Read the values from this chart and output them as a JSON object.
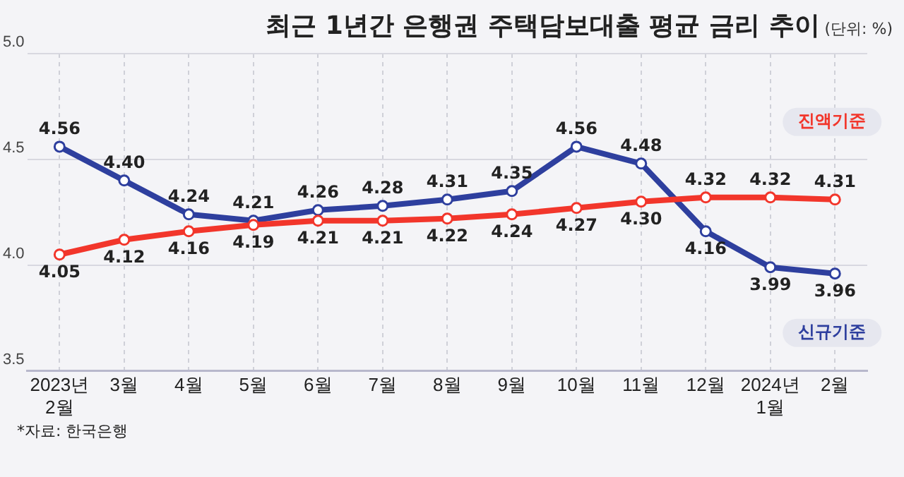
{
  "chart_data": {
    "type": "line",
    "title": "최근 1년간 은행권 주택담보대출 평균 금리 추이",
    "subtitle": "(단위: %)",
    "categories": [
      "2023년\n2월",
      "3월",
      "4월",
      "5월",
      "6월",
      "7월",
      "8월",
      "9월",
      "10월",
      "11월",
      "12월",
      "2024년\n1월",
      "2월"
    ],
    "series": [
      {
        "name": "진액기준",
        "color": "#f2362b",
        "values": [
          4.05,
          4.12,
          4.16,
          4.19,
          4.21,
          4.21,
          4.22,
          4.24,
          4.27,
          4.3,
          4.32,
          4.32,
          4.31
        ],
        "value_labels": [
          "4.05",
          "4.12",
          "4.16",
          "4.19",
          "4.21",
          "4.21",
          "4.22",
          "4.24",
          "4.27",
          "4.30",
          "4.32",
          "4.32",
          "4.31"
        ]
      },
      {
        "name": "신규기준",
        "color": "#2e3f9e",
        "values": [
          4.56,
          4.4,
          4.24,
          4.21,
          4.26,
          4.28,
          4.31,
          4.35,
          4.56,
          4.48,
          4.16,
          3.99,
          3.96
        ],
        "value_labels": [
          "4.56",
          "4.40",
          "4.24",
          "4.21",
          "4.26",
          "4.28",
          "4.31",
          "4.35",
          "4.56",
          "4.48",
          "4.16",
          "3.99",
          "3.96"
        ]
      }
    ],
    "ylim": [
      3.5,
      5.0
    ],
    "yticks": [
      {
        "value": 3.5,
        "label": "3.5"
      },
      {
        "value": 4.0,
        "label": "4.0"
      },
      {
        "value": 4.5,
        "label": "4.5"
      },
      {
        "value": 5.0,
        "label": "5.0"
      }
    ],
    "grid": true,
    "legend": false,
    "marker": "circle",
    "line_style": "solid",
    "annotations": [
      "*자료: 한국은행"
    ]
  }
}
